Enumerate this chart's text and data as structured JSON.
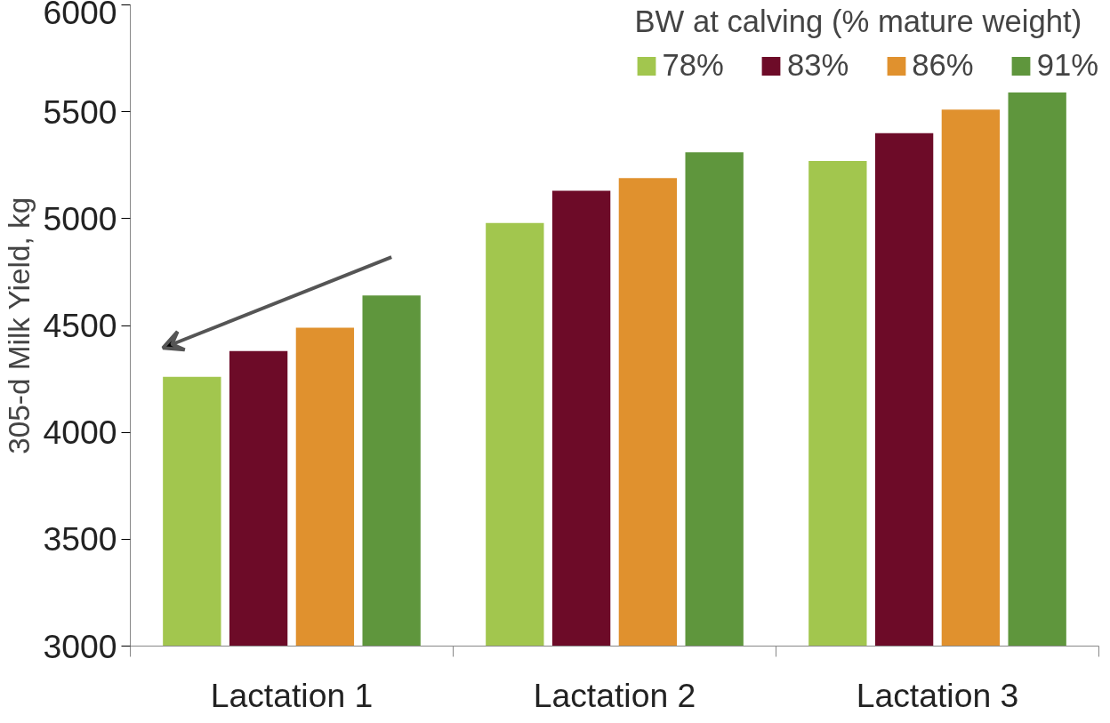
{
  "chart_data": {
    "type": "bar",
    "ylabel": "305-d Milk Yield, kg",
    "legend_title": "BW at calving (% mature weight)",
    "categories": [
      "Lactation 1",
      "Lactation 2",
      "Lactation 3"
    ],
    "series": [
      {
        "name": "78%",
        "color": "#a2c64e",
        "values": [
          4260,
          4980,
          5270
        ]
      },
      {
        "name": "83%",
        "color": "#6d0b28",
        "values": [
          4380,
          5130,
          5400
        ]
      },
      {
        "name": "86%",
        "color": "#e0912e",
        "values": [
          4490,
          5190,
          5510
        ]
      },
      {
        "name": "91%",
        "color": "#5f963d",
        "values": [
          4640,
          5310,
          5590
        ]
      }
    ],
    "ylim": [
      3000,
      6000
    ],
    "yticks": [
      3000,
      3500,
      4000,
      4500,
      5000,
      5500,
      6000
    ],
    "grid": false,
    "legend": "top right"
  }
}
